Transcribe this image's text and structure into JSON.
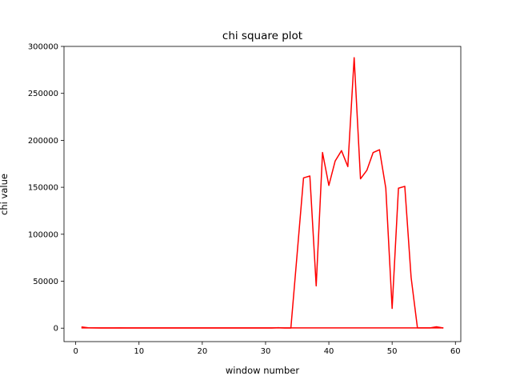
{
  "chart_data": {
    "type": "line",
    "title": "chi square plot",
    "xlabel": "window number",
    "ylabel": "chi value",
    "xlim": [
      -1.85,
      60.85
    ],
    "ylim": [
      -14300,
      300000
    ],
    "xticks": [
      0,
      10,
      20,
      30,
      40,
      50,
      60
    ],
    "yticks": [
      0,
      50000,
      100000,
      150000,
      200000,
      250000,
      300000
    ],
    "grid": false,
    "legend": "none",
    "series": [
      {
        "color": "#ff0000",
        "x": [
          1,
          2,
          3,
          4,
          5,
          6,
          7,
          8,
          9,
          10,
          11,
          12,
          13,
          14,
          15,
          16,
          17,
          18,
          19,
          20,
          21,
          22,
          23,
          24,
          25,
          26,
          27,
          28,
          29,
          30,
          31,
          32,
          33,
          34,
          35,
          36,
          37,
          38,
          39,
          40,
          41,
          42,
          43,
          44,
          45,
          46,
          47,
          48,
          49,
          50,
          51,
          52,
          53,
          54,
          55,
          56,
          57,
          58
        ],
        "y": [
          1200,
          400,
          300,
          200,
          200,
          200,
          300,
          200,
          200,
          200,
          200,
          200,
          200,
          200,
          200,
          200,
          200,
          200,
          200,
          200,
          200,
          200,
          200,
          200,
          200,
          200,
          200,
          200,
          200,
          200,
          200,
          500,
          200,
          200,
          80000,
          160000,
          162000,
          45000,
          187000,
          152000,
          178000,
          189000,
          172000,
          288000,
          159000,
          168000,
          187000,
          190000,
          149000,
          21000,
          149000,
          151000,
          54000,
          300,
          300,
          300,
          1500,
          300
        ]
      },
      {
        "color": "#ff0000",
        "x": [
          1,
          58
        ],
        "y": [
          300,
          300
        ]
      }
    ]
  }
}
